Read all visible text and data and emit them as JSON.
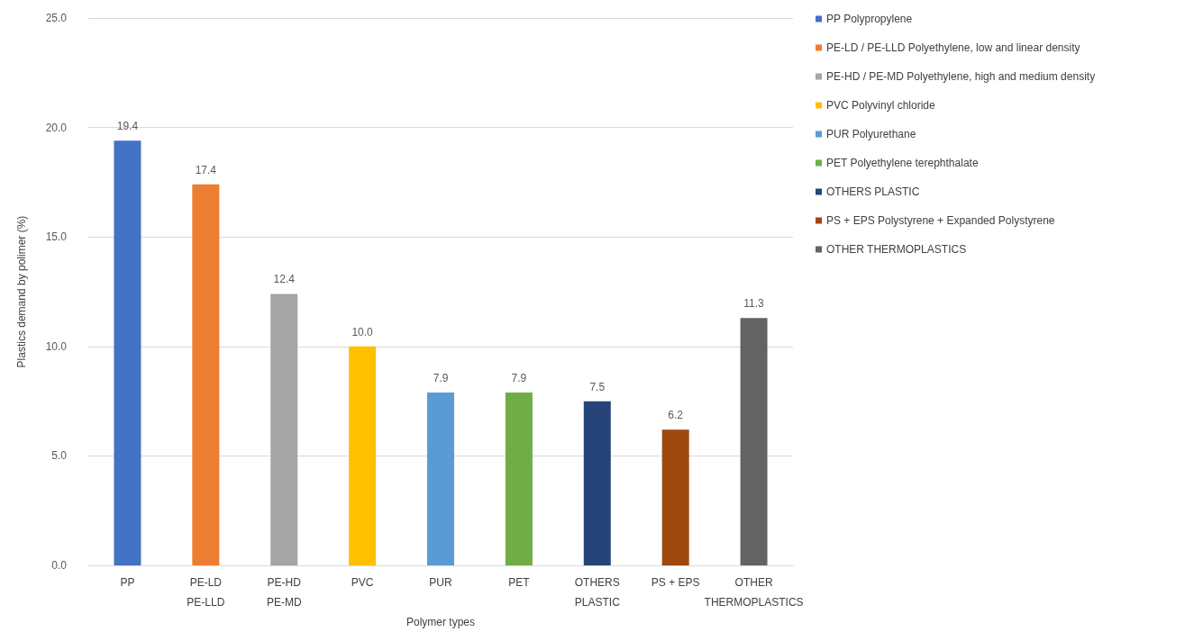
{
  "chart_data": {
    "type": "bar",
    "xlabel": "Polymer types",
    "ylabel": "Plastics demand by polimer (%)",
    "categories": [
      "PP",
      "PE-LD\nPE-LLD",
      "PE-HD\nPE-MD",
      "PVC",
      "PUR",
      "PET",
      "OTHERS\nPLASTIC",
      "PS + EPS",
      "OTHER\nTHERMOPLASTICS"
    ],
    "series": [
      {
        "name": "PP Polypropylene",
        "color": "#4472c4",
        "values": [
          19.4,
          null,
          null,
          null,
          null,
          null,
          null,
          null,
          null
        ],
        "value_labels": [
          "19.4",
          null,
          null,
          null,
          null,
          null,
          null,
          null,
          null
        ]
      },
      {
        "name": "PE-LD / PE-LLD Polyethylene, low and linear density",
        "color": "#ed7d31",
        "values": [
          null,
          17.4,
          null,
          null,
          null,
          null,
          null,
          null,
          null
        ],
        "value_labels": [
          null,
          "17.4",
          null,
          null,
          null,
          null,
          null,
          null,
          null
        ]
      },
      {
        "name": "PE-HD / PE-MD Polyethylene, high and medium density",
        "color": "#a5a5a5",
        "values": [
          null,
          null,
          12.4,
          null,
          null,
          null,
          null,
          null,
          null
        ],
        "value_labels": [
          null,
          null,
          "12.4",
          null,
          null,
          null,
          null,
          null,
          null
        ]
      },
      {
        "name": "PVC Polyvinyl chloride",
        "color": "#ffc000",
        "values": [
          null,
          null,
          null,
          10.0,
          null,
          null,
          null,
          null,
          null
        ],
        "value_labels": [
          null,
          null,
          null,
          "10.0",
          null,
          null,
          null,
          null,
          null
        ]
      },
      {
        "name": "PUR Polyurethane",
        "color": "#5b9bd5",
        "values": [
          null,
          null,
          null,
          null,
          7.9,
          null,
          null,
          null,
          null
        ],
        "value_labels": [
          null,
          null,
          null,
          null,
          "7.9",
          null,
          null,
          null,
          null
        ]
      },
      {
        "name": "PET Polyethylene terephthalate",
        "color": "#70ad47",
        "values": [
          null,
          null,
          null,
          null,
          null,
          7.9,
          null,
          null,
          null
        ],
        "value_labels": [
          null,
          null,
          null,
          null,
          null,
          "7.9",
          null,
          null,
          null
        ]
      },
      {
        "name": "OTHERS PLASTIC",
        "color": "#264478",
        "values": [
          null,
          null,
          null,
          null,
          null,
          null,
          7.5,
          null,
          null
        ],
        "value_labels": [
          null,
          null,
          null,
          null,
          null,
          null,
          "7.5",
          null,
          null
        ]
      },
      {
        "name": "PS + EPS Polystyrene + Expanded Polystyrene",
        "color": "#9e480e",
        "values": [
          null,
          null,
          null,
          null,
          null,
          null,
          null,
          6.2,
          null
        ],
        "value_labels": [
          null,
          null,
          null,
          null,
          null,
          null,
          null,
          "6.2",
          null
        ]
      },
      {
        "name": "OTHER THERMOPLASTICS",
        "color": "#636363",
        "values": [
          null,
          null,
          null,
          null,
          null,
          null,
          null,
          null,
          11.3
        ],
        "value_labels": [
          null,
          null,
          null,
          null,
          null,
          null,
          null,
          null,
          "11.3"
        ]
      }
    ],
    "ylim": [
      0,
      25
    ],
    "yticks": [
      {
        "value": 0,
        "label": "0.0"
      },
      {
        "value": 5,
        "label": "5.0"
      },
      {
        "value": 10,
        "label": "10.0"
      },
      {
        "value": 15,
        "label": "15.0"
      },
      {
        "value": 20,
        "label": "20.0"
      },
      {
        "value": 25,
        "label": "25.0"
      }
    ],
    "grid": "y",
    "legend": "right"
  }
}
